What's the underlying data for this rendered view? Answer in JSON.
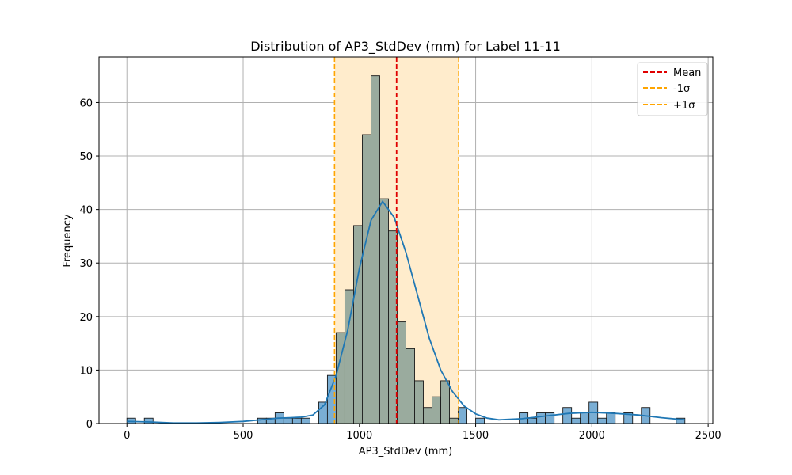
{
  "chart_data": {
    "type": "bar",
    "title": "Distribution of AP3_StdDev (mm) for Label 11-11",
    "xlabel": "AP3_StdDev (mm)",
    "ylabel": "Frequency",
    "xlim": [
      -120,
      2520
    ],
    "ylim": [
      0,
      68.5
    ],
    "xticks": [
      0,
      500,
      1000,
      1500,
      2000,
      2500
    ],
    "yticks": [
      0,
      10,
      20,
      30,
      40,
      50,
      60
    ],
    "grid": true,
    "legend_position": "top-right",
    "bin_width": 37.5,
    "bins_start": 0,
    "bin_counts": [
      1,
      0,
      1,
      0,
      0,
      0,
      0,
      0,
      0,
      0,
      0,
      0,
      0,
      0,
      0,
      1,
      1,
      2,
      1,
      1,
      1,
      0,
      4,
      9,
      17,
      25,
      37,
      54,
      65,
      42,
      36,
      19,
      14,
      8,
      3,
      5,
      8,
      1,
      3,
      0,
      1,
      0,
      0,
      0,
      0,
      2,
      1,
      2,
      2,
      0,
      3,
      1,
      2,
      4,
      1,
      2,
      0,
      2,
      0,
      3,
      0,
      0,
      0,
      1
    ],
    "kde": {
      "x": [
        0,
        100,
        200,
        300,
        400,
        500,
        600,
        650,
        700,
        750,
        800,
        850,
        900,
        950,
        1000,
        1050,
        1100,
        1150,
        1200,
        1250,
        1300,
        1350,
        1400,
        1450,
        1500,
        1550,
        1600,
        1700,
        1800,
        1900,
        2000,
        2100,
        2200,
        2300,
        2400
      ],
      "y": [
        0.4,
        0.3,
        0.1,
        0.1,
        0.2,
        0.4,
        0.8,
        1.0,
        1.1,
        1.2,
        1.6,
        3.5,
        9,
        17.5,
        29,
        38,
        41.5,
        38.5,
        32,
        24,
        16,
        10,
        6,
        3.3,
        1.8,
        1.0,
        0.7,
        0.9,
        1.4,
        1.9,
        2.1,
        1.9,
        1.6,
        1.1,
        0.7
      ]
    },
    "mean": 1160,
    "minus_1sigma": 893,
    "plus_1sigma": 1427,
    "legend": [
      "Mean",
      "-1σ",
      "+1σ"
    ],
    "colors": {
      "bar_fill": "#7aaed4",
      "bar_in_band": "#9aab9e",
      "band": "#ffeccc",
      "kde": "#1f77b4",
      "mean": "#e00000",
      "sigma": "#ffa500",
      "grid": "#b0b0b0"
    }
  }
}
